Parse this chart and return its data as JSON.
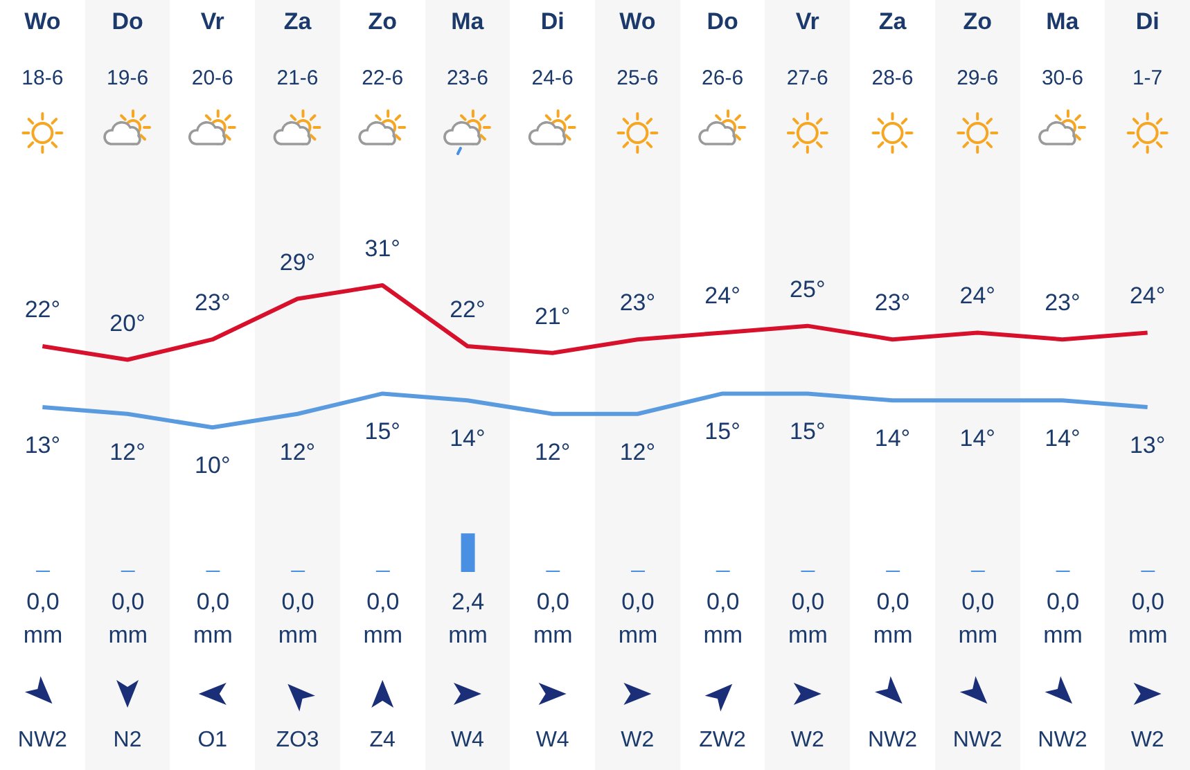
{
  "chart_data": [
    {
      "type": "line",
      "categories": [
        "18-6",
        "19-6",
        "20-6",
        "21-6",
        "22-6",
        "23-6",
        "24-6",
        "25-6",
        "26-6",
        "27-6",
        "28-6",
        "29-6",
        "30-6",
        "1-7"
      ],
      "series": [
        {
          "type": "line",
          "color": "#d7102c",
          "values": [
            22,
            20,
            23,
            29,
            31,
            22,
            21,
            23,
            24,
            25,
            23,
            24,
            23,
            24
          ],
          "value_labels": [
            "22°",
            "20°",
            "23°",
            "29°",
            "31°",
            "22°",
            "21°",
            "23°",
            "24°",
            "25°",
            "23°",
            "24°",
            "23°",
            "24°"
          ]
        },
        {
          "type": "line",
          "color": "#5a9be0",
          "values": [
            13,
            12,
            10,
            12,
            15,
            14,
            12,
            12,
            15,
            15,
            14,
            14,
            14,
            13
          ],
          "value_labels": [
            "13°",
            "12°",
            "10°",
            "12°",
            "15°",
            "14°",
            "12°",
            "12°",
            "15°",
            "15°",
            "14°",
            "14°",
            "14°",
            "13°"
          ]
        }
      ],
      "annotations": [
        "Wo",
        "Do",
        "Vr",
        "Za",
        "Zo",
        "Ma",
        "Di",
        "Wo",
        "Do",
        "Vr",
        "Za",
        "Zo",
        "Ma",
        "Di"
      ],
      "marker": "none",
      "line_style": "solid",
      "legend": false
    },
    {
      "type": "bar",
      "categories": [
        null,
        null,
        null,
        null,
        null,
        null,
        null,
        null,
        null,
        null,
        null,
        null,
        null,
        null
      ],
      "color": "#4a90e2",
      "values": [
        0,
        0,
        0,
        0,
        0,
        2.4,
        0,
        0,
        0,
        0,
        0,
        0,
        0,
        0
      ],
      "value_labels": [
        "0,0 mm",
        "0,0 mm",
        "0,0 mm",
        "0,0 mm",
        "0,0 mm",
        "2,4 mm",
        "0,0 mm",
        "0,0 mm",
        "0,0 mm",
        "0,0 mm",
        "0,0 mm",
        "0,0 mm",
        "0,0 mm",
        "0,0 mm"
      ],
      "annotations": [
        "NW2",
        "N2",
        "O1",
        "ZO3",
        "Z4",
        "W4",
        "W4",
        "W2",
        "ZW2",
        "W2",
        "NW2",
        "NW2",
        "NW2",
        "W2"
      ],
      "legend": false
    }
  ]
}
